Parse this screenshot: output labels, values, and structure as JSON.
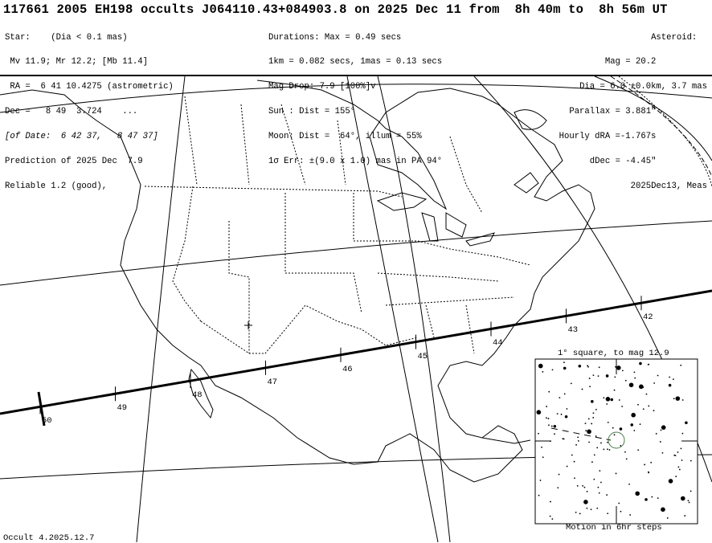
{
  "header": {
    "title": "117661 2005 EH198 occults J064110.43+084903.8 on 2025 Dec 11 from  8h 40m to  8h 56m UT",
    "star": [
      "Star:    (Dia < 0.1 mas)",
      " Mv 11.9; Mr 12.2; [Mb 11.4]",
      " RA =  6 41 10.4275 (astrometric)",
      "Dec =   8 49  3.724    ...",
      "[of Date:  6 42 37,   8 47 37]",
      "Prediction of 2025 Dec  7.9",
      "Reliable 1.2 (good),"
    ],
    "event": [
      "Durations: Max = 0.49 secs",
      "1km = 0.082 secs, 1mas = 0.13 secs",
      "Mag Drop: 7.9 [100%]v",
      "Sun : Dist = 155°",
      "Moon: Dist =  64°, illum = 55%",
      "1σ Err: ±(9.0 x 1.0) mas in PA 94°"
    ],
    "asteroid": [
      "Asteroid:  ",
      "Mag = 20.2          ",
      "Dia = 6.0 ±0.0km, 3.7 mas",
      "Parallax = 3.881\"          ",
      "Hourly dRA =-1.767s          ",
      "dDec = -4.45\"          ",
      "2025Dec13, Meas"
    ]
  },
  "path": {
    "time_labels": [
      "50",
      "49",
      "48",
      "47",
      "46",
      "45",
      "44",
      "43",
      "42"
    ],
    "line_color": "#000000"
  },
  "inset": {
    "title": "1° square, to mag 12.9",
    "caption": "Motion in 6hr steps",
    "target_circle_color": "#4a7a4a"
  },
  "footer": {
    "version": "Occult 4.2025.12.7"
  }
}
